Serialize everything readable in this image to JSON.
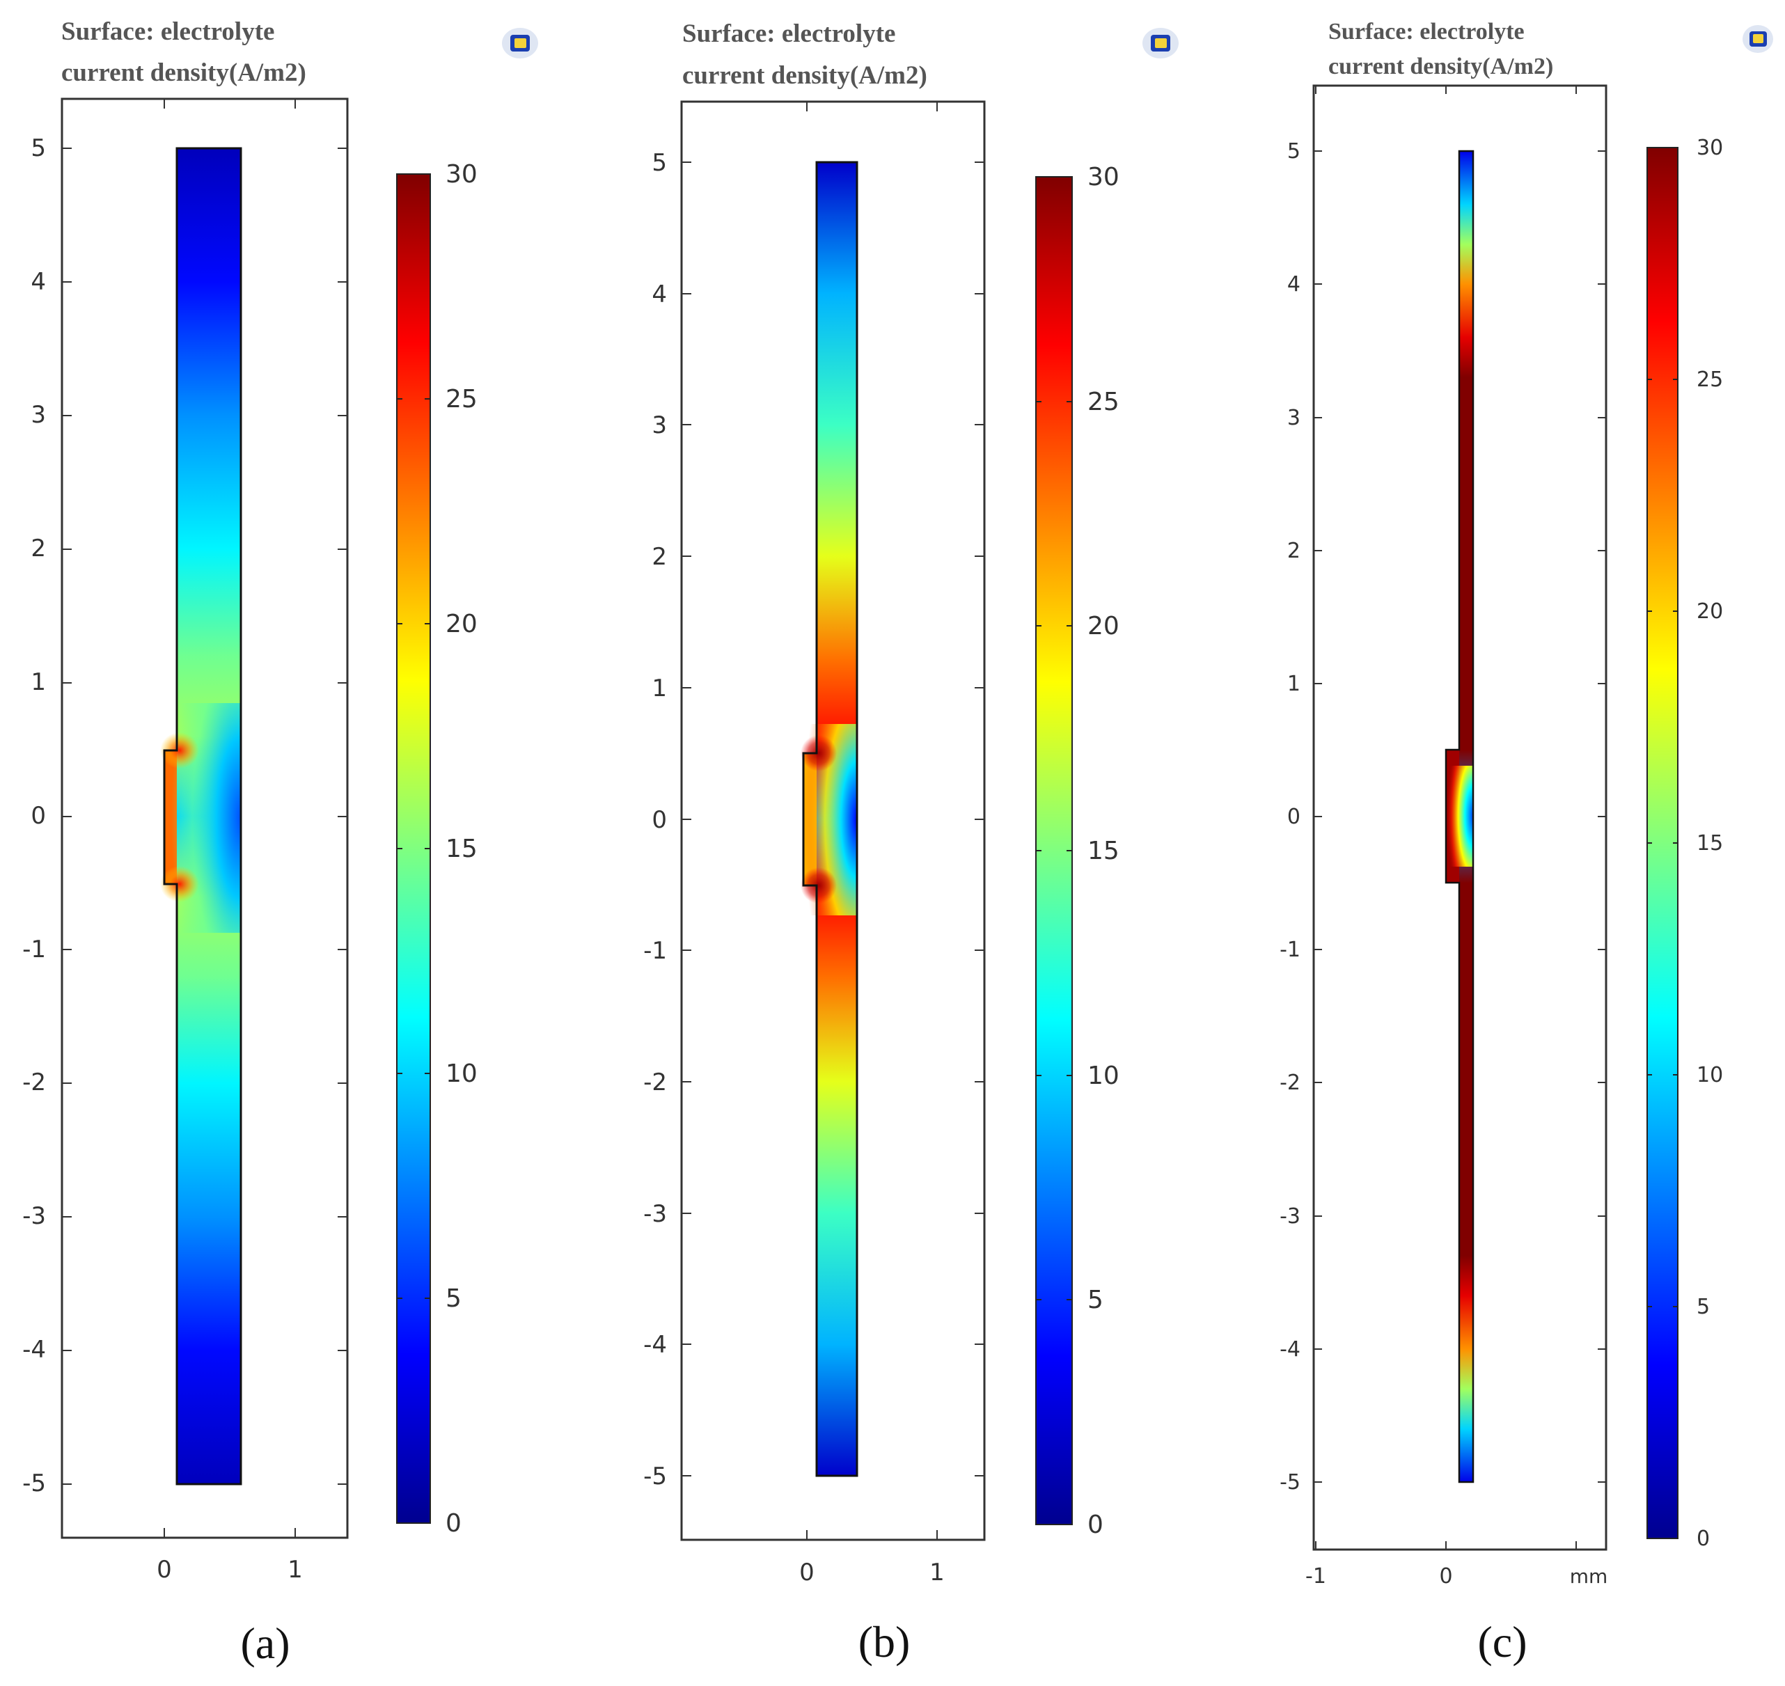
{
  "figure": {
    "description_labels": [
      "(a)",
      "(b)",
      "(c)"
    ]
  },
  "chart_data": [
    {
      "type": "heatmap",
      "panel_label": "(a)",
      "title_line1": "Surface: electrolyte",
      "title_line2": "current density(A/m2)",
      "x_ticks": [
        "0",
        "1"
      ],
      "x_tick_values": [
        0,
        1
      ],
      "y_ticks": [
        "5",
        "4",
        "3",
        "2",
        "1",
        "0",
        "-1",
        "-2",
        "-3",
        "-4",
        "-5"
      ],
      "y_tick_values": [
        5,
        4,
        3,
        2,
        1,
        0,
        -1,
        -2,
        -3,
        -4,
        -5
      ],
      "x_unit_label": "",
      "xlim": [
        -0.78,
        1.4
      ],
      "ylim": [
        -5.4,
        5.36
      ],
      "domain_x": [
        0.1,
        0.58
      ],
      "domain_y": [
        -5,
        5
      ],
      "notch_x": [
        0,
        0.1
      ],
      "notch_y": [
        -0.5,
        0.5
      ],
      "colorbar": {
        "min": 0,
        "max": 30,
        "ticks": [
          "30",
          "25",
          "20",
          "15",
          "10",
          "5",
          "0"
        ],
        "tick_values": [
          30,
          25,
          20,
          15,
          10,
          5,
          0
        ]
      },
      "profile_along_y": {
        "y": [
          5,
          4,
          3,
          2,
          1.2,
          0.6,
          0,
          -0.6,
          -1.2,
          -2,
          -3,
          -4,
          -5
        ],
        "value": [
          1.5,
          4,
          8,
          11,
          14.5,
          16,
          10,
          16,
          14.5,
          11,
          8,
          4,
          1.5
        ]
      }
    },
    {
      "type": "heatmap",
      "panel_label": "(b)",
      "title_line1": "Surface: electrolyte",
      "title_line2": "current density(A/m2)",
      "x_ticks": [
        "0",
        "1"
      ],
      "x_tick_values": [
        0,
        1
      ],
      "y_ticks": [
        "5",
        "4",
        "3",
        "2",
        "1",
        "0",
        "-1",
        "-2",
        "-3",
        "-4",
        "-5"
      ],
      "y_tick_values": [
        5,
        4,
        3,
        2,
        1,
        0,
        -1,
        -2,
        -3,
        -4,
        -5
      ],
      "x_unit_label": "",
      "xlim": [
        -0.97,
        1.37
      ],
      "ylim": [
        -5.5,
        5.46
      ],
      "domain_x": [
        0.1,
        0.38
      ],
      "domain_y": [
        -5,
        5
      ],
      "notch_x": [
        0,
        0.1
      ],
      "notch_y": [
        -0.5,
        0.5
      ],
      "colorbar": {
        "min": 0,
        "max": 30,
        "ticks": [
          "30",
          "25",
          "20",
          "15",
          "10",
          "5",
          "0"
        ],
        "tick_values": [
          30,
          25,
          20,
          15,
          10,
          5,
          0
        ]
      },
      "profile_along_y": {
        "y": [
          5,
          4,
          3,
          2,
          1.2,
          0.6,
          0,
          -0.6,
          -1.2,
          -2,
          -3,
          -4,
          -5
        ],
        "value": [
          2,
          9,
          13,
          18,
          23,
          26,
          8,
          26,
          23,
          18,
          13,
          9,
          2
        ]
      }
    },
    {
      "type": "heatmap",
      "panel_label": "(c)",
      "title_line1": "Surface: electrolyte",
      "title_line2": "current density(A/m2)",
      "x_ticks": [
        "-1",
        "0",
        "mm"
      ],
      "x_tick_values": [
        -1,
        0,
        1
      ],
      "y_ticks": [
        "5",
        "4",
        "3",
        "2",
        "1",
        "0",
        "-1",
        "-2",
        "-3",
        "-4",
        "-5"
      ],
      "y_tick_values": [
        5,
        4,
        3,
        2,
        1,
        0,
        -1,
        -2,
        -3,
        -4,
        -5
      ],
      "x_unit_label": "mm",
      "xlim": [
        -1.0,
        1.2
      ],
      "ylim": [
        -5.55,
        5.49
      ],
      "domain_x": [
        0.1,
        0.2
      ],
      "domain_y": [
        -5,
        5
      ],
      "notch_x": [
        0,
        0.1
      ],
      "notch_y": [
        -0.5,
        0.5
      ],
      "colorbar": {
        "min": 0,
        "max": 30,
        "ticks": [
          "30",
          "25",
          "20",
          "15",
          "10",
          "5",
          "0"
        ],
        "tick_values": [
          30,
          25,
          20,
          15,
          10,
          5,
          0
        ]
      },
      "profile_along_y": {
        "y": [
          5,
          4.6,
          4.3,
          4,
          3.6,
          3.3,
          0.5,
          0,
          -0.5,
          -3.3,
          -3.6,
          -4,
          -4.3,
          -4.6,
          -5
        ],
        "value": [
          3,
          10,
          16,
          22,
          27,
          30,
          30,
          8,
          30,
          30,
          27,
          22,
          16,
          10,
          3
        ]
      }
    }
  ]
}
